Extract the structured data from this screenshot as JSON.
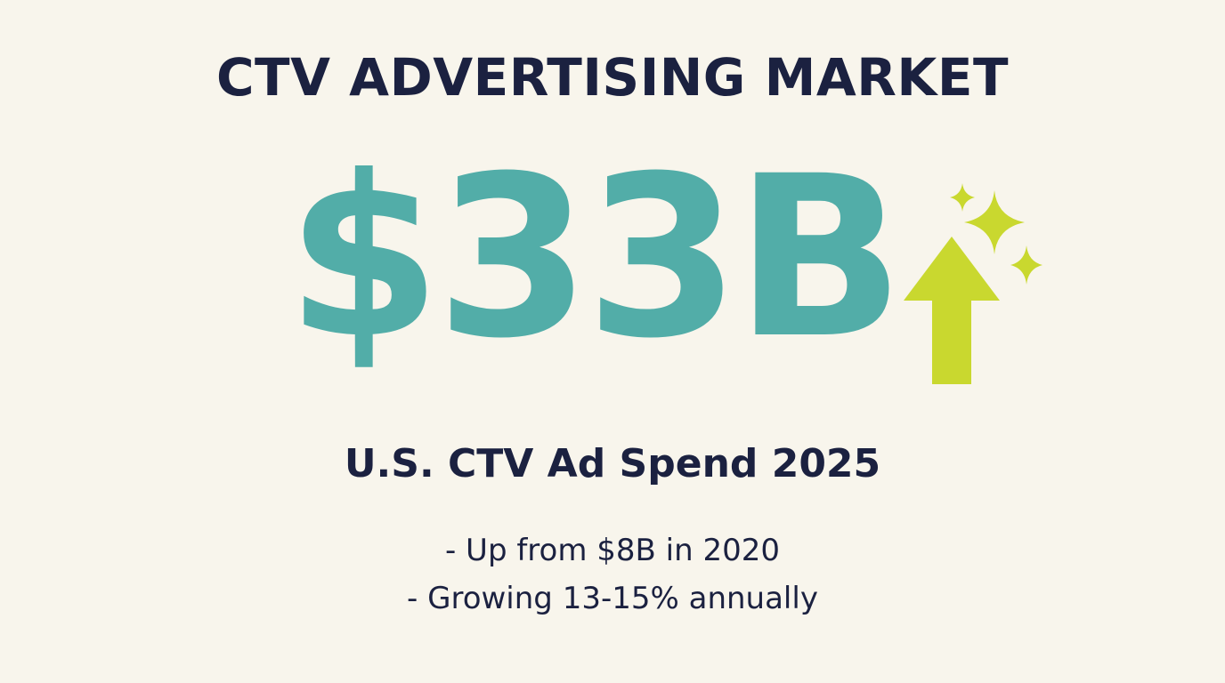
{
  "title": "CTV ADVERTISING MARKET",
  "hero_value": "$33B",
  "subtitle": "U.S. CTV Ad Spend 2025",
  "bullets": [
    "- Up from $8B in 2020",
    "- Growing 13-15% annually"
  ],
  "colors": {
    "background": "#f8f5ec",
    "text": "#1b2140",
    "hero": "#52ada8",
    "arrow": "#c9d82f"
  },
  "icons": {
    "growth": "up-arrow-icon",
    "sparkle": "sparkle-icon"
  }
}
